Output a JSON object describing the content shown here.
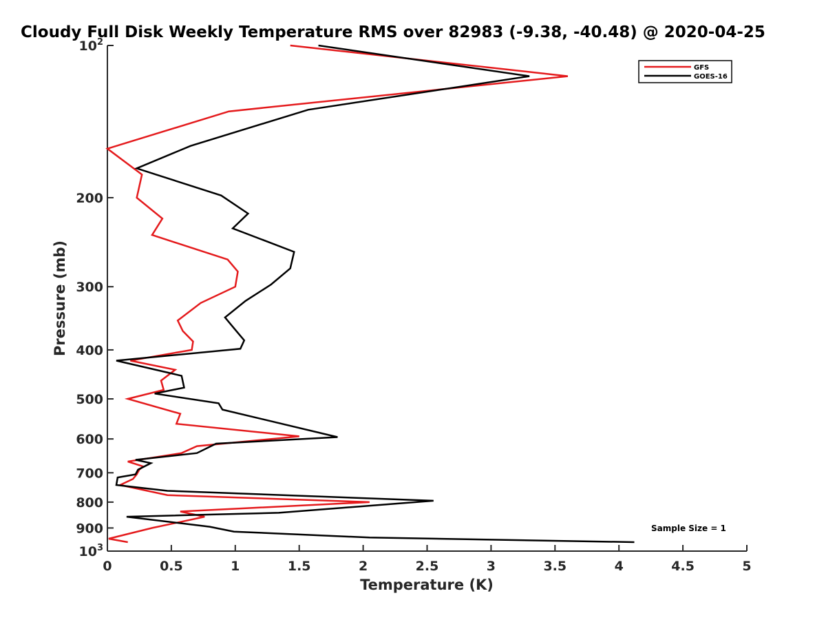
{
  "chart_data": {
    "type": "line",
    "title": "Cloudy Full Disk Weekly Temperature RMS over 82983 (-9.38, -40.48) @ 2020-04-25",
    "xlabel": "Temperature (K)",
    "ylabel": "Pressure (mb)",
    "xlim": [
      0,
      5
    ],
    "ylim": [
      100,
      1000
    ],
    "y_scale": "log",
    "y_reversed": true,
    "grid": false,
    "legend_position": "top-right",
    "x_ticks": [
      "0",
      "0.5",
      "1",
      "1.5",
      "2",
      "2.5",
      "3",
      "3.5",
      "4",
      "4.5",
      "5"
    ],
    "y_ticks": [
      {
        "value": 100,
        "base": "10",
        "exp": "2"
      },
      {
        "value": 200,
        "label": "200"
      },
      {
        "value": 300,
        "label": "300"
      },
      {
        "value": 400,
        "label": "400"
      },
      {
        "value": 500,
        "label": "500"
      },
      {
        "value": 600,
        "label": "600"
      },
      {
        "value": 700,
        "label": "700"
      },
      {
        "value": 800,
        "label": "800"
      },
      {
        "value": 900,
        "label": "900"
      },
      {
        "value": 1000,
        "base": "10",
        "exp": "3"
      }
    ],
    "annotation": "Sample Size = 1",
    "series": [
      {
        "name": "GFS",
        "color": "#e41a1c",
        "x": [
          1.43,
          3.6,
          0.95,
          0.0,
          0.27,
          0.23,
          0.43,
          0.35,
          0.94,
          1.02,
          1.0,
          0.73,
          0.55,
          0.59,
          0.67,
          0.66,
          0.18,
          0.53,
          0.42,
          0.44,
          0.16,
          0.57,
          0.54,
          1.5,
          0.7,
          0.58,
          0.16,
          0.28,
          0.25,
          0.23,
          0.2,
          0.1,
          0.47,
          2.05,
          0.57,
          0.76,
          0.35,
          0.01,
          0.16
        ],
        "y": [
          100,
          115,
          135,
          160,
          180,
          200,
          220,
          237,
          265,
          280,
          300,
          323,
          350,
          367,
          385,
          400,
          420,
          438,
          460,
          480,
          500,
          535,
          560,
          593,
          620,
          640,
          665,
          680,
          690,
          705,
          720,
          740,
          775,
          800,
          835,
          855,
          900,
          945,
          960
        ]
      },
      {
        "name": "GOES-16",
        "color": "#000000",
        "x": [
          1.65,
          3.3,
          1.57,
          0.65,
          0.23,
          0.89,
          1.1,
          0.98,
          1.46,
          1.43,
          1.28,
          1.08,
          0.92,
          1.0,
          1.07,
          1.04,
          0.07,
          0.58,
          0.6,
          0.37,
          0.87,
          0.9,
          1.8,
          0.85,
          0.7,
          0.22,
          0.34,
          0.24,
          0.22,
          0.08,
          0.07,
          0.47,
          2.55,
          1.34,
          0.15,
          0.8,
          0.99,
          2.05,
          4.12
        ],
        "y": [
          100,
          115,
          134,
          158,
          175,
          198,
          215,
          230,
          256,
          276,
          297,
          320,
          345,
          365,
          383,
          398,
          420,
          450,
          475,
          488,
          510,
          525,
          595,
          613,
          640,
          660,
          670,
          690,
          705,
          715,
          740,
          760,
          795,
          840,
          855,
          895,
          915,
          940,
          960
        ]
      }
    ]
  }
}
